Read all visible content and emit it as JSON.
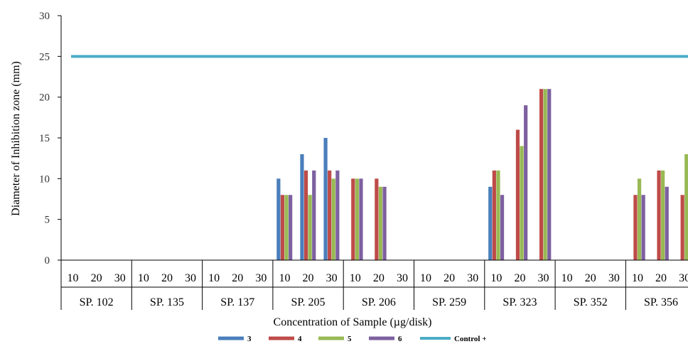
{
  "chart_data": {
    "type": "bar",
    "xlabel": "Concentration of Sample (µg/disk)",
    "ylabel": "Diameter of Inhibition zone (mm)",
    "ylim": [
      0,
      30
    ],
    "yticks": [
      0,
      5,
      10,
      15,
      20,
      25,
      30
    ],
    "grid": false,
    "legend_position": "bottom",
    "sub_categories": [
      "10",
      "20",
      "30"
    ],
    "groups": [
      "SP. 102",
      "SP. 135",
      "SP. 137",
      "SP. 205",
      "SP. 206",
      "SP. 259",
      "SP. 323",
      "SP. 352",
      "SP. 356"
    ],
    "series": [
      {
        "name": "3",
        "color": "#4a7ebb",
        "values": [
          0,
          0,
          0,
          0,
          0,
          0,
          0,
          0,
          0,
          10,
          13,
          15,
          0,
          0,
          0,
          0,
          0,
          0,
          9,
          0,
          0,
          0,
          0,
          0,
          0,
          0,
          0
        ]
      },
      {
        "name": "4",
        "color": "#be4b48",
        "values": [
          0,
          0,
          0,
          0,
          0,
          0,
          0,
          0,
          0,
          8,
          11,
          11,
          10,
          10,
          0,
          0,
          0,
          0,
          11,
          16,
          21,
          0,
          0,
          0,
          8,
          11,
          8
        ]
      },
      {
        "name": "5",
        "color": "#98b954",
        "values": [
          0,
          0,
          0,
          0,
          0,
          0,
          0,
          0,
          0,
          8,
          8,
          10,
          10,
          9,
          0,
          0,
          0,
          0,
          11,
          14,
          21,
          0,
          0,
          0,
          10,
          11,
          13
        ]
      },
      {
        "name": "6",
        "color": "#7d60a0",
        "values": [
          0,
          0,
          0,
          0,
          0,
          0,
          0,
          0,
          0,
          8,
          11,
          11,
          10,
          9,
          0,
          0,
          0,
          0,
          8,
          19,
          21,
          0,
          0,
          0,
          8,
          9,
          0
        ]
      }
    ],
    "reference_line": {
      "name": "Control +",
      "value": 25,
      "color": "#4bacc6"
    }
  }
}
